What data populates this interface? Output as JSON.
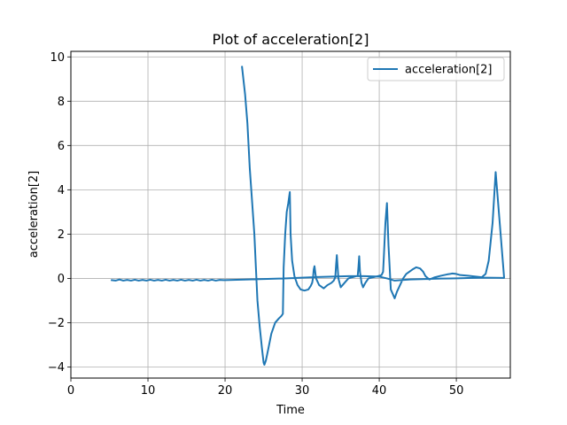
{
  "chart_data": {
    "type": "line",
    "title": "Plot of acceleration[2]",
    "xlabel": "Time",
    "ylabel": "acceleration[2]",
    "xlim": [
      0,
      57
    ],
    "ylim": [
      -4.5,
      10.25
    ],
    "xticks": [
      0,
      10,
      20,
      30,
      40,
      50
    ],
    "yticks": [
      -4,
      -2,
      0,
      2,
      4,
      6,
      8,
      10
    ],
    "grid": true,
    "legend_position": "top-right",
    "series": [
      {
        "name": "acceleration[2]",
        "color": "#1f77b4",
        "x": [
          5.3,
          5.8,
          6.3,
          6.8,
          7.3,
          7.8,
          8.3,
          8.8,
          9.3,
          9.8,
          10.3,
          10.8,
          11.3,
          11.8,
          12.3,
          12.8,
          13.3,
          13.8,
          14.3,
          14.8,
          15.3,
          15.8,
          16.3,
          16.8,
          17.3,
          17.8,
          18.3,
          18.8,
          19.3,
          19.8,
          20.0,
          22.0,
          24.0,
          26.0,
          28.0,
          30.0,
          32.0,
          34.0,
          36.0,
          38.0,
          40.0,
          41.0,
          42.0,
          44.0,
          46.0,
          48.0,
          50.0,
          52.0,
          54.0,
          56.2,
          55.1,
          54.7,
          54.2,
          53.8,
          53.3,
          52.5,
          51.5,
          50.5,
          50.0,
          49.5,
          48.8,
          48.0,
          47.2,
          46.5,
          46.0,
          45.7,
          45.3,
          44.8,
          44.3,
          43.9,
          43.5,
          43.1,
          42.7,
          42.3,
          42.0,
          41.5,
          41.2,
          41.0,
          40.8,
          40.6,
          40.5,
          40.3,
          39.8,
          39.2,
          38.6,
          38.2,
          37.9,
          37.7,
          37.5,
          37.4,
          37.3,
          37.2,
          37.0,
          36.5,
          36.0,
          35.5,
          35.0,
          34.7,
          34.5,
          34.4,
          34.3,
          34.1,
          33.8,
          33.3,
          32.8,
          32.2,
          31.8,
          31.6,
          31.5,
          31.4,
          31.3,
          31.1,
          30.8,
          30.3,
          29.8,
          29.4,
          29.0,
          28.7,
          28.5,
          28.4,
          28.2,
          28.0,
          27.8,
          27.6,
          27.5,
          27.4,
          27.3,
          27.0,
          26.5,
          26.0,
          25.6,
          25.3,
          25.1,
          25.0,
          24.8,
          24.5,
          24.2,
          24.0,
          23.8,
          23.5,
          23.2,
          22.9,
          22.6,
          22.2
        ],
        "values": [
          -0.08,
          -0.1,
          -0.05,
          -0.1,
          -0.07,
          -0.1,
          -0.06,
          -0.1,
          -0.07,
          -0.1,
          -0.06,
          -0.1,
          -0.07,
          -0.1,
          -0.06,
          -0.1,
          -0.07,
          -0.1,
          -0.06,
          -0.1,
          -0.07,
          -0.1,
          -0.06,
          -0.1,
          -0.07,
          -0.1,
          -0.06,
          -0.1,
          -0.07,
          -0.08,
          -0.08,
          -0.06,
          -0.04,
          -0.02,
          0.0,
          0.03,
          0.06,
          0.08,
          0.1,
          0.1,
          0.08,
          0.0,
          -0.1,
          -0.05,
          -0.03,
          -0.01,
          0.0,
          0.02,
          0.03,
          0.02,
          4.8,
          2.5,
          0.8,
          0.2,
          0.05,
          0.08,
          0.12,
          0.15,
          0.2,
          0.22,
          0.18,
          0.12,
          0.05,
          -0.05,
          0.1,
          0.3,
          0.45,
          0.5,
          0.4,
          0.3,
          0.2,
          0.0,
          -0.3,
          -0.6,
          -0.9,
          -0.5,
          1.5,
          3.4,
          2.5,
          1.0,
          0.3,
          0.15,
          0.1,
          0.05,
          0.0,
          -0.2,
          -0.4,
          -0.2,
          0.3,
          1.0,
          0.5,
          0.1,
          0.1,
          0.05,
          0.0,
          -0.2,
          -0.4,
          0.0,
          1.05,
          0.6,
          0.05,
          -0.1,
          -0.2,
          -0.3,
          -0.45,
          -0.3,
          0.0,
          0.55,
          0.4,
          0.0,
          -0.2,
          -0.35,
          -0.5,
          -0.55,
          -0.5,
          -0.3,
          0.1,
          0.8,
          2.0,
          3.9,
          3.4,
          3.0,
          2.0,
          0.5,
          -1.6,
          -1.65,
          -1.7,
          -1.8,
          -2.0,
          -2.5,
          -3.2,
          -3.7,
          -3.9,
          -3.8,
          -3.2,
          -2.2,
          -1.0,
          0.5,
          2.0,
          3.5,
          5.0,
          7.0,
          8.3,
          9.55
        ]
      }
    ]
  }
}
